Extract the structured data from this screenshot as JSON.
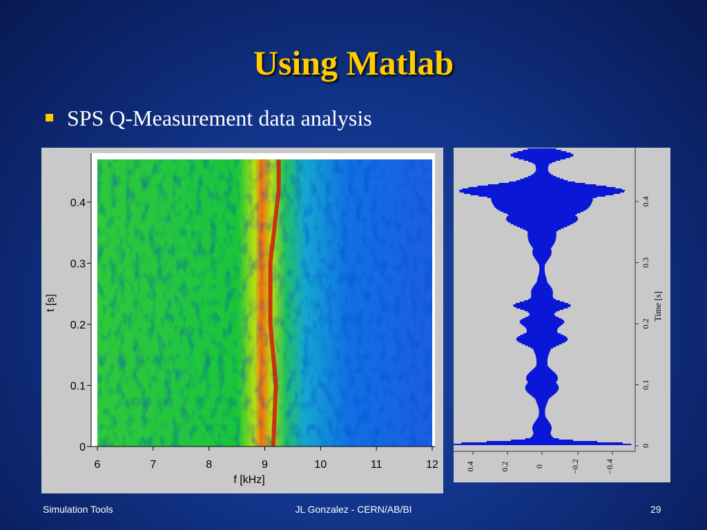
{
  "slide": {
    "title": "Using Matlab",
    "bullet": "SPS Q-Measurement data analysis"
  },
  "footer": {
    "left": "Simulation Tools",
    "center": "JL Gonzalez - CERN/AB/BI",
    "page": "29"
  },
  "colors": {
    "title": "#ffcc00",
    "bullet": "#ffcc00",
    "signal": "#0a17d6"
  },
  "chart_data": [
    {
      "type": "heatmap",
      "xlabel": "f [kHz]",
      "ylabel": "t [s]",
      "xlim": [
        6,
        12
      ],
      "ylim": [
        0,
        0.47
      ],
      "xticks": [
        "6",
        "7",
        "8",
        "9",
        "10",
        "11",
        "12"
      ],
      "yticks": [
        "0",
        "0.1",
        "0.2",
        "0.3",
        "0.4"
      ]
    },
    {
      "type": "line",
      "ylabel": "Time [s]",
      "time_ticks": [
        "0",
        "0.1",
        "0.2",
        "0.3",
        "0.4"
      ],
      "amplitude_ticks": [
        "0.4",
        "0.2",
        "0",
        "−0.2",
        "−0.4"
      ]
    }
  ]
}
